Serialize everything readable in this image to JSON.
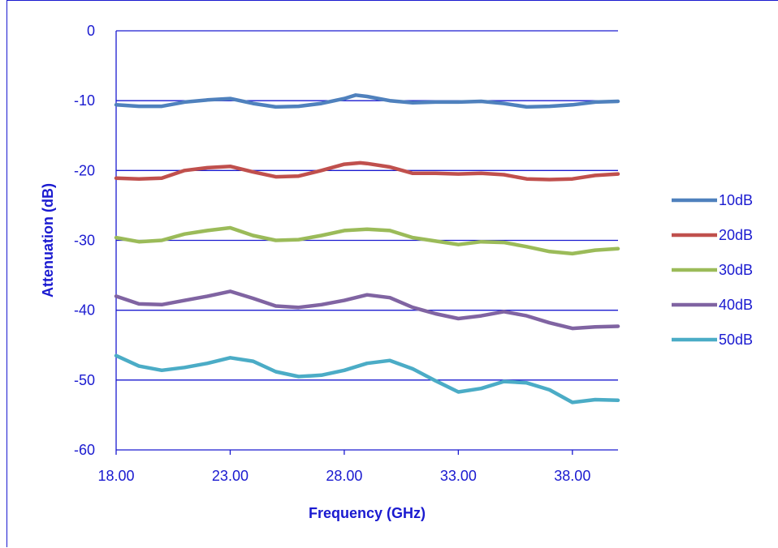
{
  "chart_data": {
    "type": "line",
    "title": "",
    "xlabel": "Frequency (GHz)",
    "ylabel": "Attenuation (dB)",
    "xlim": [
      18,
      40
    ],
    "ylim": [
      -60,
      0
    ],
    "x_ticks": [
      "18.00",
      "23.00",
      "28.00",
      "33.00",
      "38.00"
    ],
    "x_tick_values": [
      18,
      23,
      28,
      33,
      38
    ],
    "y_ticks": [
      "0",
      "-10",
      "-20",
      "-30",
      "-40",
      "-50",
      "-60"
    ],
    "y_tick_values": [
      0,
      -10,
      -20,
      -30,
      -40,
      -50,
      -60
    ],
    "grid": "horizontal",
    "legend_position": "right",
    "series": [
      {
        "name": "10dB",
        "color": "#4F81BD",
        "points": [
          [
            18,
            -10.6
          ],
          [
            19,
            -10.8
          ],
          [
            20,
            -10.8
          ],
          [
            21,
            -10.2
          ],
          [
            22,
            -9.9
          ],
          [
            23,
            -9.7
          ],
          [
            24,
            -10.4
          ],
          [
            25,
            -10.9
          ],
          [
            26,
            -10.8
          ],
          [
            27,
            -10.4
          ],
          [
            28,
            -9.7
          ],
          [
            28.5,
            -9.2
          ],
          [
            29,
            -9.4
          ],
          [
            30,
            -10
          ],
          [
            31,
            -10.3
          ],
          [
            32,
            -10.2
          ],
          [
            33,
            -10.2
          ],
          [
            34,
            -10.1
          ],
          [
            35,
            -10.4
          ],
          [
            36,
            -10.9
          ],
          [
            37,
            -10.8
          ],
          [
            38,
            -10.6
          ],
          [
            39,
            -10.2
          ],
          [
            40,
            -10.1
          ]
        ]
      },
      {
        "name": "20dB",
        "color": "#C0504D",
        "points": [
          [
            18,
            -21.1
          ],
          [
            19,
            -21.2
          ],
          [
            20,
            -21.1
          ],
          [
            21,
            -20
          ],
          [
            22,
            -19.6
          ],
          [
            23,
            -19.4
          ],
          [
            24,
            -20.2
          ],
          [
            25,
            -20.9
          ],
          [
            26,
            -20.8
          ],
          [
            27,
            -20
          ],
          [
            28,
            -19.1
          ],
          [
            28.7,
            -18.9
          ],
          [
            29,
            -19
          ],
          [
            30,
            -19.5
          ],
          [
            31,
            -20.4
          ],
          [
            32,
            -20.4
          ],
          [
            33,
            -20.5
          ],
          [
            34,
            -20.4
          ],
          [
            35,
            -20.6
          ],
          [
            36,
            -21.2
          ],
          [
            37,
            -21.3
          ],
          [
            38,
            -21.2
          ],
          [
            39,
            -20.7
          ],
          [
            40,
            -20.5
          ]
        ]
      },
      {
        "name": "30dB",
        "color": "#9BBB59",
        "points": [
          [
            18,
            -29.6
          ],
          [
            19,
            -30.2
          ],
          [
            20,
            -30
          ],
          [
            21,
            -29.1
          ],
          [
            22,
            -28.6
          ],
          [
            23,
            -28.2
          ],
          [
            24,
            -29.3
          ],
          [
            25,
            -30
          ],
          [
            26,
            -29.9
          ],
          [
            27,
            -29.3
          ],
          [
            28,
            -28.6
          ],
          [
            29,
            -28.4
          ],
          [
            30,
            -28.6
          ],
          [
            31,
            -29.6
          ],
          [
            32,
            -30.1
          ],
          [
            33,
            -30.6
          ],
          [
            34,
            -30.2
          ],
          [
            35,
            -30.3
          ],
          [
            36,
            -30.9
          ],
          [
            37,
            -31.6
          ],
          [
            38,
            -31.9
          ],
          [
            39,
            -31.4
          ],
          [
            40,
            -31.2
          ]
        ]
      },
      {
        "name": "40dB",
        "color": "#8064A2",
        "points": [
          [
            18,
            -38
          ],
          [
            19,
            -39.1
          ],
          [
            20,
            -39.2
          ],
          [
            21,
            -38.6
          ],
          [
            22,
            -38
          ],
          [
            23,
            -37.3
          ],
          [
            24,
            -38.3
          ],
          [
            25,
            -39.4
          ],
          [
            26,
            -39.6
          ],
          [
            27,
            -39.2
          ],
          [
            28,
            -38.6
          ],
          [
            29,
            -37.8
          ],
          [
            30,
            -38.2
          ],
          [
            31,
            -39.6
          ],
          [
            32,
            -40.5
          ],
          [
            33,
            -41.2
          ],
          [
            34,
            -40.8
          ],
          [
            35,
            -40.2
          ],
          [
            36,
            -40.8
          ],
          [
            37,
            -41.8
          ],
          [
            38,
            -42.6
          ],
          [
            39,
            -42.4
          ],
          [
            40,
            -42.3
          ]
        ]
      },
      {
        "name": "50dB",
        "color": "#4BACC6",
        "points": [
          [
            18,
            -46.5
          ],
          [
            19,
            -48
          ],
          [
            20,
            -48.6
          ],
          [
            21,
            -48.2
          ],
          [
            22,
            -47.6
          ],
          [
            23,
            -46.8
          ],
          [
            24,
            -47.3
          ],
          [
            25,
            -48.8
          ],
          [
            26,
            -49.5
          ],
          [
            27,
            -49.3
          ],
          [
            28,
            -48.6
          ],
          [
            29,
            -47.6
          ],
          [
            30,
            -47.2
          ],
          [
            31,
            -48.4
          ],
          [
            32,
            -50.1
          ],
          [
            33,
            -51.7
          ],
          [
            34,
            -51.2
          ],
          [
            35,
            -50.2
          ],
          [
            36,
            -50.4
          ],
          [
            37,
            -51.4
          ],
          [
            38,
            -53.2
          ],
          [
            39,
            -52.8
          ],
          [
            40,
            -52.9
          ]
        ]
      }
    ]
  }
}
